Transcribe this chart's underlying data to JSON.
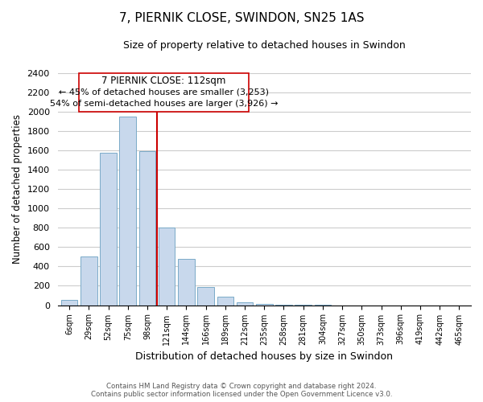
{
  "title": "7, PIERNIK CLOSE, SWINDON, SN25 1AS",
  "subtitle": "Size of property relative to detached houses in Swindon",
  "xlabel": "Distribution of detached houses by size in Swindon",
  "ylabel": "Number of detached properties",
  "bar_labels": [
    "6sqm",
    "29sqm",
    "52sqm",
    "75sqm",
    "98sqm",
    "121sqm",
    "144sqm",
    "166sqm",
    "189sqm",
    "212sqm",
    "235sqm",
    "258sqm",
    "281sqm",
    "304sqm",
    "327sqm",
    "350sqm",
    "373sqm",
    "396sqm",
    "419sqm",
    "442sqm",
    "465sqm"
  ],
  "bar_values": [
    55,
    500,
    1575,
    1950,
    1590,
    800,
    480,
    190,
    90,
    30,
    10,
    5,
    2,
    1,
    0,
    0,
    0,
    0,
    0,
    0,
    0
  ],
  "bar_color": "#c8d8ec",
  "bar_edge_color": "#7aaac8",
  "vline_color": "#cc0000",
  "vline_x_index": 4,
  "ylim": [
    0,
    2400
  ],
  "yticks": [
    0,
    200,
    400,
    600,
    800,
    1000,
    1200,
    1400,
    1600,
    1800,
    2000,
    2200,
    2400
  ],
  "annotation_title": "7 PIERNIK CLOSE: 112sqm",
  "annotation_line1": "← 45% of detached houses are smaller (3,253)",
  "annotation_line2": "54% of semi-detached houses are larger (3,926) →",
  "footer1": "Contains HM Land Registry data © Crown copyright and database right 2024.",
  "footer2": "Contains public sector information licensed under the Open Government Licence v3.0.",
  "background_color": "#ffffff",
  "grid_color": "#cccccc"
}
